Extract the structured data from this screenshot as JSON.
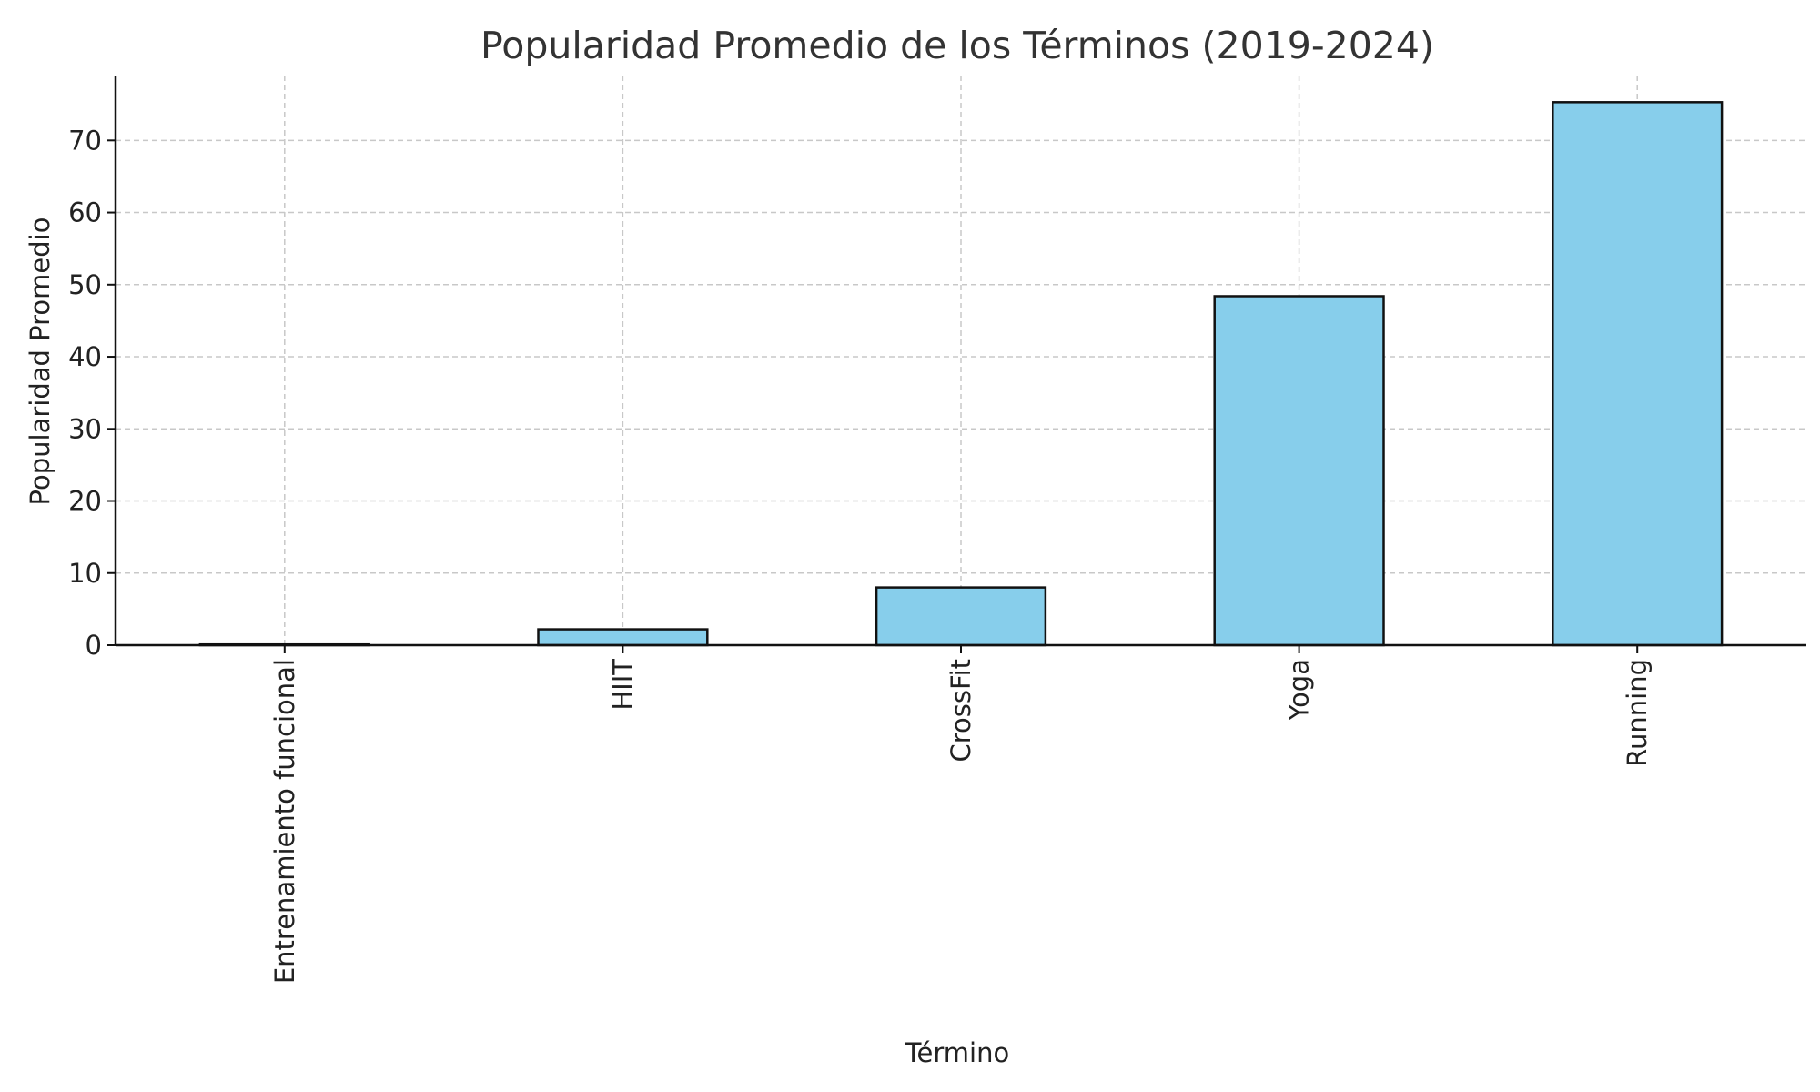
{
  "chart_data": {
    "type": "bar",
    "title": "Popularidad Promedio de los Términos (2019-2024)",
    "xlabel": "Término",
    "ylabel": "Popularidad Promedio",
    "categories": [
      "Entrenamiento funcional",
      "HIIT",
      "CrossFit",
      "Yoga",
      "Running"
    ],
    "values": [
      0.1,
      2.2,
      8.0,
      48.4,
      75.3
    ],
    "ylim": [
      0,
      79
    ],
    "yticks": [
      0,
      10,
      20,
      30,
      40,
      50,
      60,
      70
    ],
    "grid": true,
    "bar_color": "#87CEEB",
    "edge_color": "#111111"
  }
}
